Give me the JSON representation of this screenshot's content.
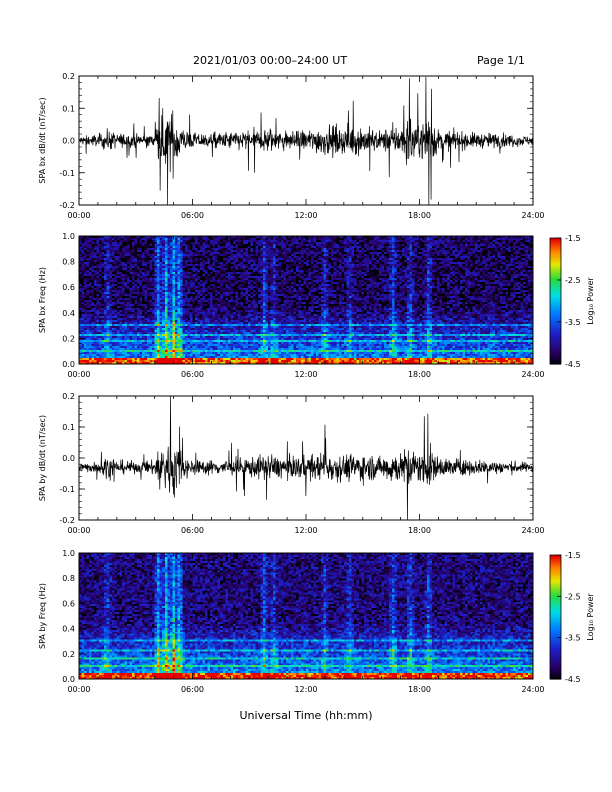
{
  "header": {
    "title": "2021/01/03  00:00–24:00 UT",
    "page": "Page 1/1"
  },
  "x_axis_title": "Universal Time (hh:mm)",
  "colorbar": {
    "label": "Log₁₀ Power",
    "ticks": [
      "-1.5",
      "-2.5",
      "-3.5",
      "-4.5"
    ],
    "range": [
      -4.5,
      -1.5
    ]
  },
  "chart_data": [
    {
      "type": "line",
      "ylabel": "SPA bx dB/dt (nT/sec)",
      "xlim_hours": [
        0,
        24
      ],
      "ylim": [
        -0.2,
        0.2
      ],
      "x_ticks": [
        "00:00",
        "06:00",
        "12:00",
        "18:00",
        "24:00"
      ],
      "y_ticks": [
        "0.2",
        "0.1",
        "0.0",
        "-0.1",
        "-0.2"
      ],
      "y_tick_values": [
        0.2,
        0.1,
        0.0,
        -0.1,
        -0.2
      ],
      "baseline": 0.0,
      "envelope": {
        "x_hours": [
          0,
          1,
          1.5,
          2,
          3,
          4,
          4.2,
          4.5,
          4.8,
          5,
          5.3,
          5.5,
          6,
          7,
          8,
          9,
          10,
          11,
          12,
          13,
          14,
          15,
          16,
          16.5,
          17,
          17.5,
          18,
          18.5,
          19,
          20,
          21,
          22,
          23,
          24
        ],
        "amplitude": [
          0.03,
          0.04,
          0.07,
          0.05,
          0.04,
          0.05,
          0.12,
          0.2,
          0.19,
          0.2,
          0.15,
          0.08,
          0.05,
          0.05,
          0.06,
          0.07,
          0.09,
          0.06,
          0.07,
          0.1,
          0.09,
          0.1,
          0.06,
          0.1,
          0.09,
          0.2,
          0.09,
          0.2,
          0.07,
          0.06,
          0.05,
          0.05,
          0.04,
          0.03
        ]
      }
    },
    {
      "type": "heatmap",
      "ylabel": "SPA bx Freq (Hz)",
      "xlim_hours": [
        0,
        24
      ],
      "ylim": [
        0,
        1.0
      ],
      "x_ticks": [
        "00:00",
        "06:00",
        "12:00",
        "18:00",
        "24:00"
      ],
      "y_ticks": [
        "1.0",
        "0.8",
        "0.6",
        "0.4",
        "0.2",
        "0.0"
      ],
      "y_tick_values": [
        1.0,
        0.8,
        0.6,
        0.4,
        0.2,
        0.0
      ],
      "value_range_log10": [
        -4.5,
        -1.5
      ],
      "background_level": -4.2,
      "low_freq_bands_hz": [
        0.1,
        0.18,
        0.23,
        0.3
      ],
      "burst_hours": [
        1.5,
        4.2,
        4.6,
        5.0,
        5.3,
        9.8,
        10.3,
        13.0,
        14.3,
        16.6,
        17.5,
        18.5
      ],
      "burst_strength": [
        0.4,
        0.8,
        1.0,
        1.0,
        0.9,
        0.5,
        0.4,
        0.4,
        0.4,
        0.5,
        0.5,
        0.5
      ]
    },
    {
      "type": "line",
      "ylabel": "SPA by dB/dt (nT/sec)",
      "xlim_hours": [
        0,
        24
      ],
      "ylim": [
        -0.2,
        0.2
      ],
      "x_ticks": [
        "00:00",
        "06:00",
        "12:00",
        "18:00",
        "24:00"
      ],
      "y_ticks": [
        "0.2",
        "0.1",
        "0.0",
        "-0.1",
        "-0.2"
      ],
      "y_tick_values": [
        0.2,
        0.1,
        0.0,
        -0.1,
        -0.2
      ],
      "baseline": -0.03,
      "envelope": {
        "x_hours": [
          0,
          1,
          1.5,
          2,
          3,
          4,
          4.2,
          4.5,
          4.8,
          5,
          5.3,
          5.5,
          6,
          7,
          8,
          9,
          10,
          11,
          12,
          13,
          14,
          15,
          16,
          16.5,
          17,
          17.5,
          18,
          18.5,
          19,
          20,
          21,
          22,
          23,
          24
        ],
        "amplitude": [
          0.03,
          0.04,
          0.08,
          0.05,
          0.04,
          0.05,
          0.15,
          0.2,
          0.2,
          0.2,
          0.17,
          0.08,
          0.05,
          0.05,
          0.06,
          0.07,
          0.09,
          0.07,
          0.08,
          0.1,
          0.09,
          0.1,
          0.07,
          0.12,
          0.1,
          0.15,
          0.1,
          0.15,
          0.07,
          0.06,
          0.05,
          0.05,
          0.04,
          0.03
        ]
      }
    },
    {
      "type": "heatmap",
      "ylabel": "SPA by Freq (Hz)",
      "xlim_hours": [
        0,
        24
      ],
      "ylim": [
        0,
        1.0
      ],
      "x_ticks": [
        "00:00",
        "06:00",
        "12:00",
        "18:00",
        "24:00"
      ],
      "y_ticks": [
        "1.0",
        "0.8",
        "0.6",
        "0.4",
        "0.2",
        "0.0"
      ],
      "y_tick_values": [
        1.0,
        0.8,
        0.6,
        0.4,
        0.2,
        0.0
      ],
      "value_range_log10": [
        -4.5,
        -1.5
      ],
      "background_level": -4.1,
      "low_freq_bands_hz": [
        0.1,
        0.16,
        0.23,
        0.3
      ],
      "burst_hours": [
        1.5,
        4.2,
        4.6,
        5.0,
        5.3,
        9.8,
        10.3,
        13.0,
        14.3,
        16.6,
        17.5,
        18.5
      ],
      "burst_strength": [
        0.4,
        0.8,
        1.0,
        1.0,
        0.9,
        0.5,
        0.4,
        0.4,
        0.4,
        0.5,
        0.5,
        0.5
      ]
    }
  ]
}
